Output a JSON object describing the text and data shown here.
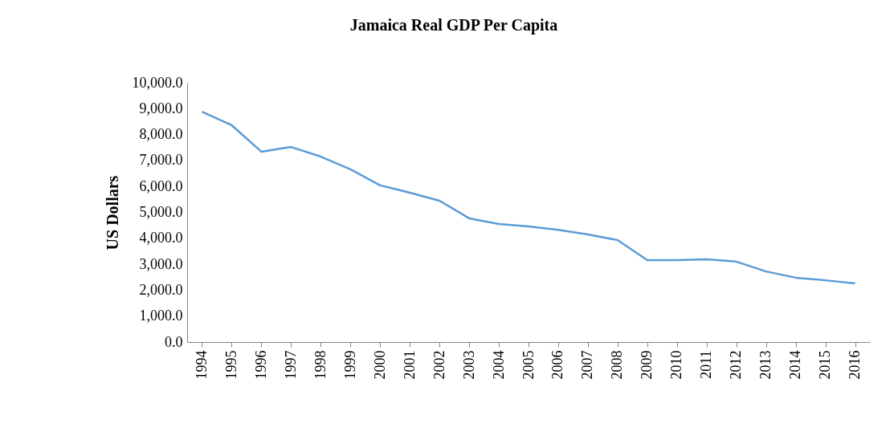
{
  "chart_data": {
    "type": "line",
    "title": "Jamaica Real GDP Per Capita",
    "ylabel": "US Dollars",
    "categories": [
      "1994",
      "1995",
      "1996",
      "1997",
      "1998",
      "1999",
      "2000",
      "2001",
      "2002",
      "2003",
      "2004",
      "2005",
      "2006",
      "2007",
      "2008",
      "2009",
      "2010",
      "2011",
      "2012",
      "2013",
      "2014",
      "2015",
      "2016"
    ],
    "series": [
      {
        "color": "#5b9bd5",
        "values": [
          8880,
          8360,
          7340,
          7520,
          7150,
          6660,
          6040,
          5760,
          5450,
          4770,
          4550,
          4460,
          4330,
          4150,
          3930,
          3160,
          3160,
          3190,
          3100,
          2720,
          2480,
          2380,
          2260
        ]
      }
    ],
    "ylim": [
      0,
      10000
    ],
    "yticks": [
      {
        "value": 0,
        "label": "0.0"
      },
      {
        "value": 1000,
        "label": "1,000.0"
      },
      {
        "value": 2000,
        "label": "2,000.0"
      },
      {
        "value": 3000,
        "label": "3,000.0"
      },
      {
        "value": 4000,
        "label": "4,000.0"
      },
      {
        "value": 5000,
        "label": "5,000.0"
      },
      {
        "value": 6000,
        "label": "6,000.0"
      },
      {
        "value": 7000,
        "label": "7,000.0"
      },
      {
        "value": 8000,
        "label": "8,000.0"
      },
      {
        "value": 9000,
        "label": "9,000.0"
      },
      {
        "value": 10000,
        "label": "10,000.0"
      }
    ],
    "grid": false,
    "legend": false,
    "marker": "none",
    "line_style": "solid"
  }
}
